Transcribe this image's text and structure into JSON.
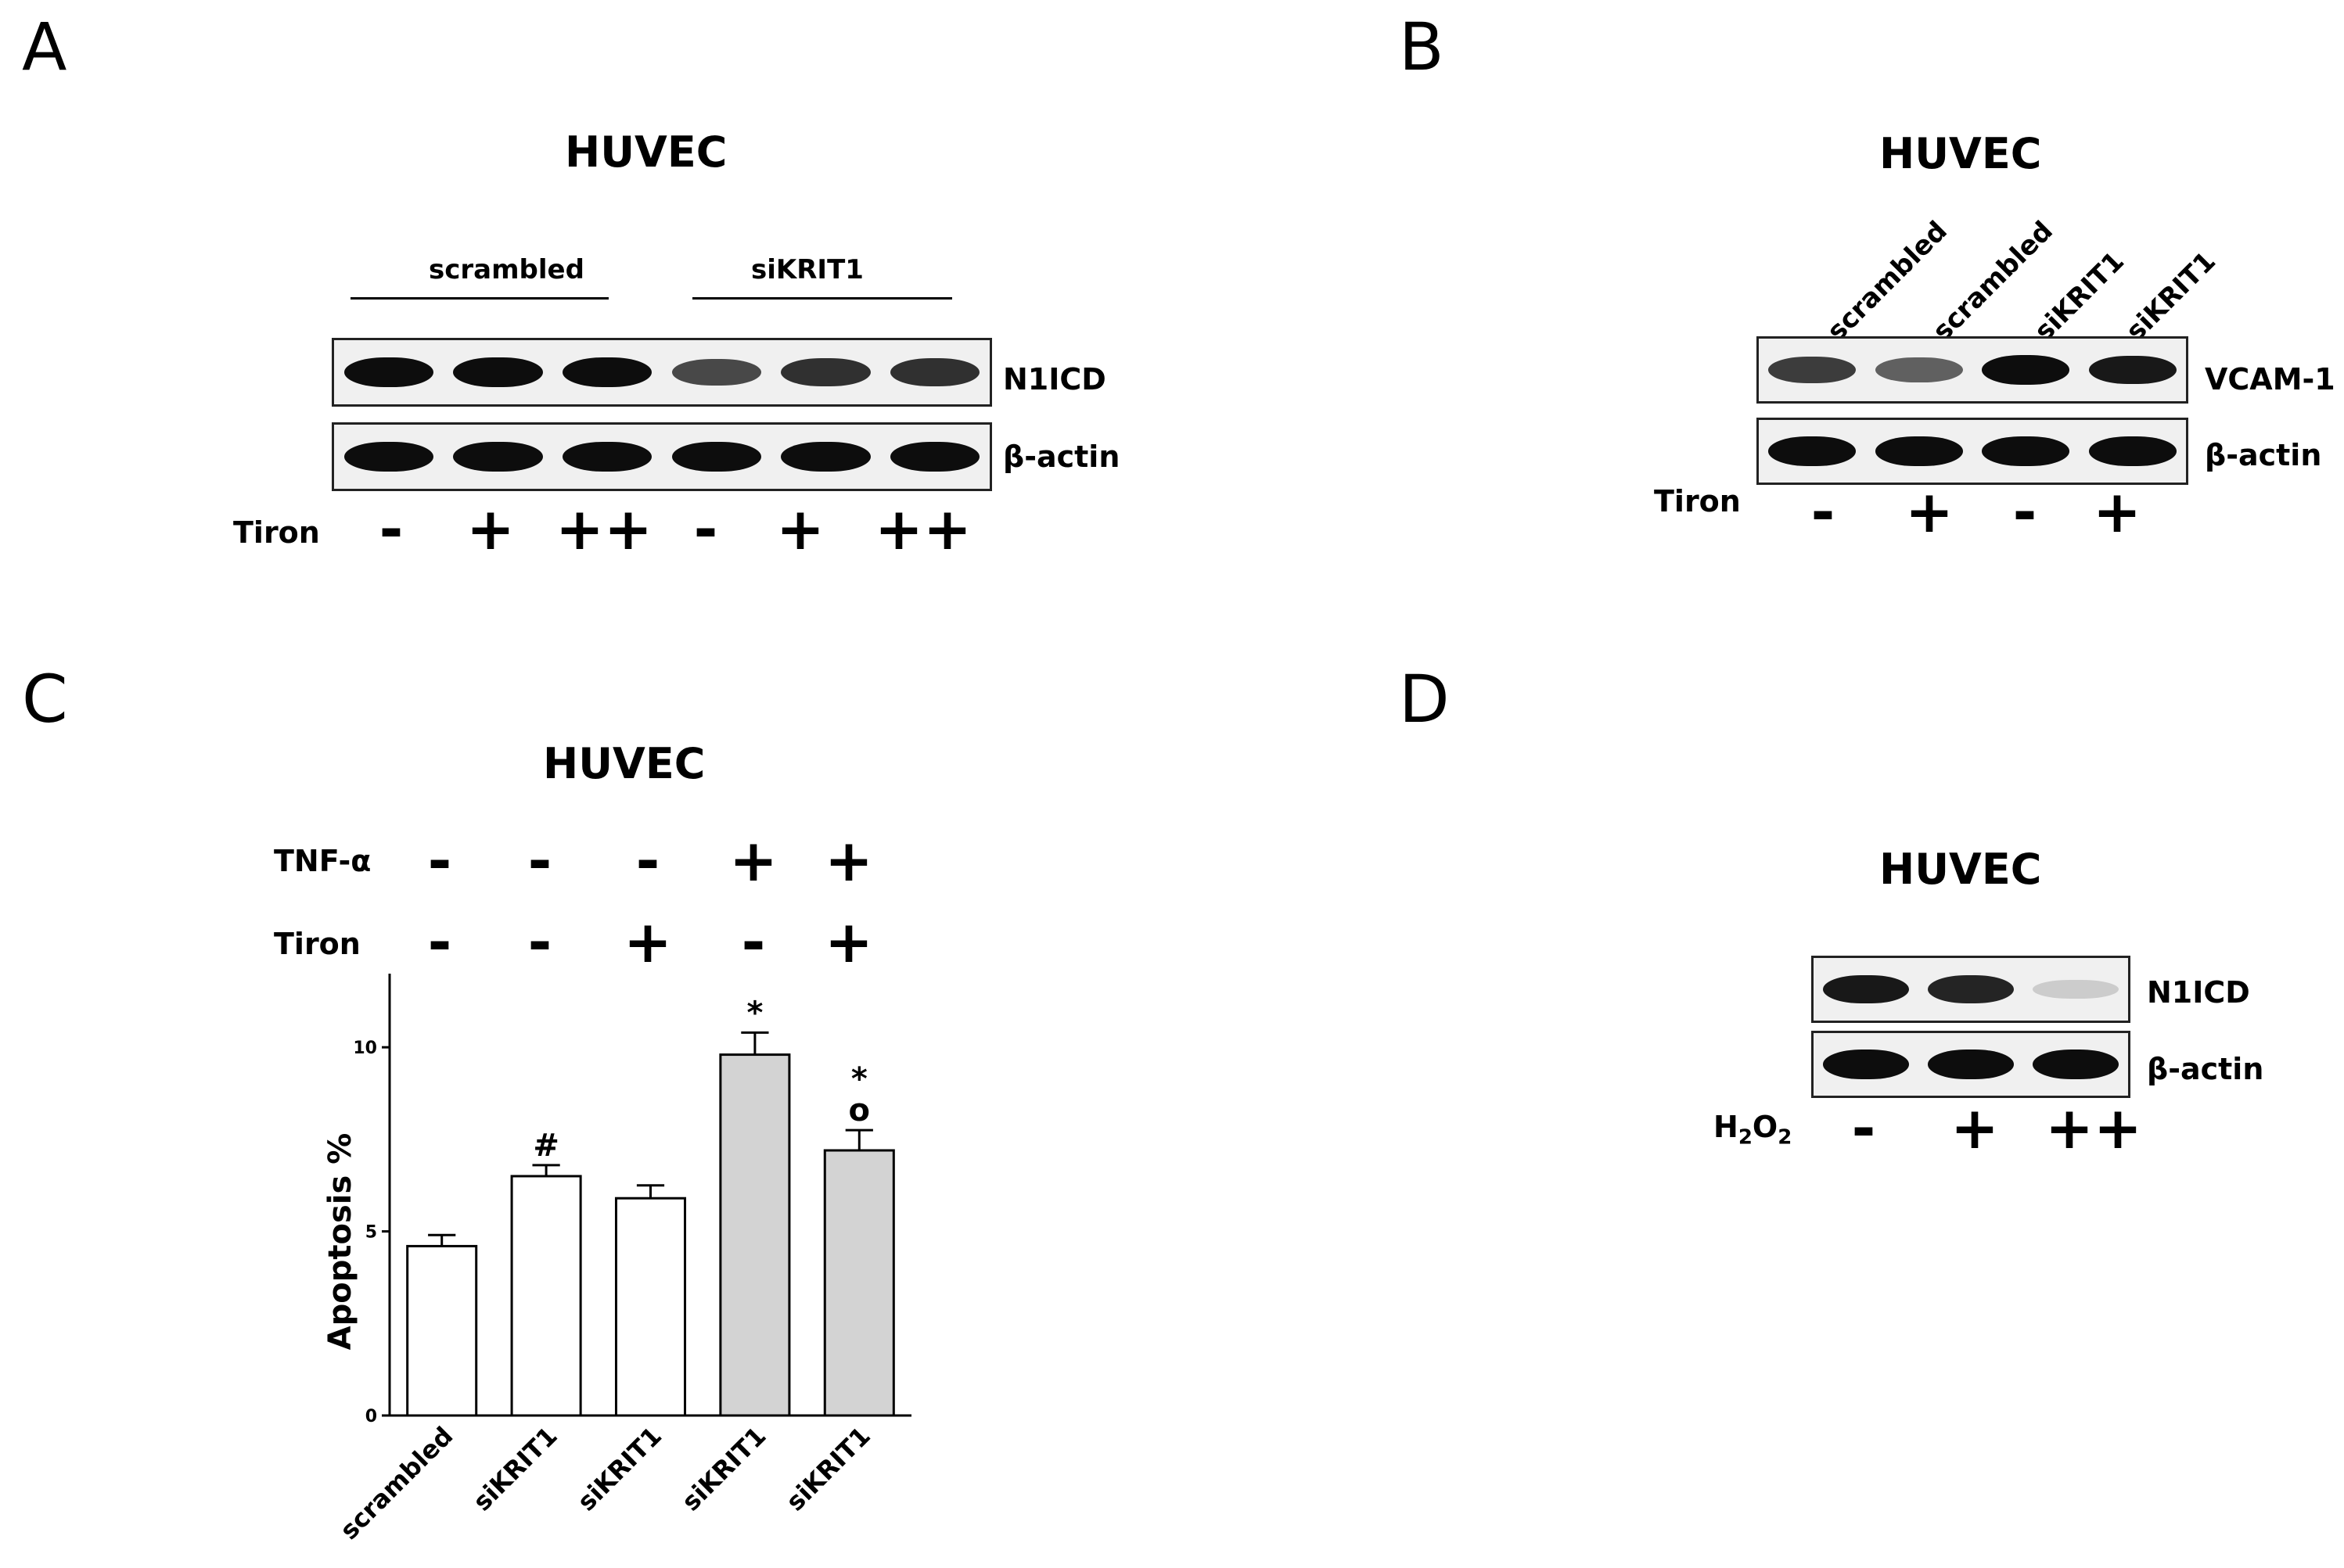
{
  "panels": {
    "a": {
      "letter": "A",
      "title": "HUVEC",
      "groups": [
        "scrambled",
        "siKRIT1"
      ],
      "rows": [
        "N1ICD",
        "β-actin"
      ],
      "treatment_label": "Tiron",
      "signs": [
        "-",
        "+",
        "++",
        "-",
        "+",
        "++"
      ],
      "n1icd_intensity": [
        0.95,
        0.95,
        0.95,
        0.7,
        0.8,
        0.8
      ],
      "actin_intensity": [
        0.95,
        0.95,
        0.95,
        0.95,
        0.95,
        0.95
      ]
    },
    "b": {
      "letter": "B",
      "title": "HUVEC",
      "lanes": [
        "scrambled",
        "scrambled",
        "siKRIT1",
        "siKRIT1"
      ],
      "rows": [
        "VCAM-1",
        "β-actin"
      ],
      "treatment_label": "Tiron",
      "signs": [
        "-",
        "+",
        "-",
        "+"
      ],
      "vcam_intensity": [
        0.75,
        0.6,
        0.95,
        0.9
      ],
      "actin_intensity": [
        0.95,
        0.95,
        0.95,
        0.95
      ]
    },
    "c": {
      "letter": "C",
      "title": "HUVEC",
      "tnf_label": "TNF-α",
      "tiron_label": "Tiron",
      "tnf_signs": [
        "-",
        "-",
        "-",
        "+",
        "+"
      ],
      "tiron_signs": [
        "-",
        "-",
        "+",
        "-",
        "+"
      ]
    },
    "d": {
      "letter": "D",
      "title": "HUVEC",
      "rows": [
        "N1ICD",
        "β-actin"
      ],
      "treatment_label": "H2O2",
      "treatment_main": "H",
      "treatment_sub1": "2",
      "treatment_mid": "O",
      "treatment_sub2": "2",
      "signs": [
        "-",
        "+",
        "++"
      ],
      "n1icd_intensity": [
        0.9,
        0.85,
        0.15
      ],
      "actin_intensity": [
        0.95,
        0.95,
        0.95
      ]
    }
  },
  "chart_data": {
    "type": "bar",
    "categories": [
      "scrambled",
      "siKRIT1",
      "siKRIT1",
      "siKRIT1",
      "siKRIT1"
    ],
    "values": [
      4.6,
      6.5,
      5.9,
      9.8,
      7.2
    ],
    "errors": [
      0.3,
      0.3,
      0.35,
      0.6,
      0.55
    ],
    "bar_colors": [
      "#ffffff",
      "#ffffff",
      "#ffffff",
      "#d3d3d3",
      "#d3d3d3"
    ],
    "annotations": [
      "",
      "#",
      "",
      "*",
      "*\no"
    ],
    "ylabel": "Apoptosis %",
    "ylim": [
      0,
      12
    ],
    "yticks": [
      "0",
      "5",
      "10"
    ],
    "ytick_values": [
      0,
      5,
      10
    ]
  }
}
